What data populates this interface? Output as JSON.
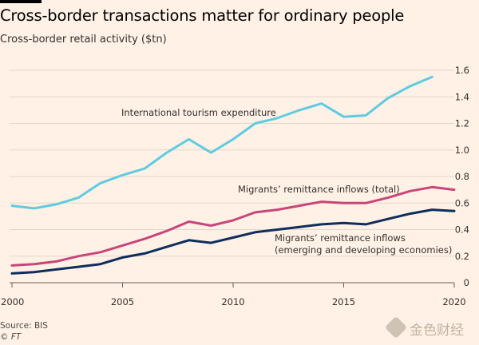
{
  "title": "Cross-border transactions matter for ordinary people",
  "subtitle": "Cross-border retail activity ($tn)",
  "footer": {
    "source": "Source: BIS",
    "credit": "© FT"
  },
  "watermark": {
    "text": "金色财经"
  },
  "colors": {
    "background": "#fff1e5",
    "grid": "#e0d7cc",
    "tourism": "#5fcbe0",
    "remittance_total": "#c8457a",
    "remittance_emerging": "#0f2d5c"
  },
  "chart_data": {
    "type": "line",
    "title": "",
    "xlabel": "",
    "ylabel": "",
    "xlim": [
      2000,
      2020
    ],
    "ylim": [
      0,
      1.6
    ],
    "x_ticks": [
      "2000",
      "2005",
      "2010",
      "2015",
      "2020"
    ],
    "y_ticks": [
      "0",
      "0.2",
      "0.4",
      "0.6",
      "0.8",
      "1.0",
      "1.2",
      "1.4",
      "1.6"
    ],
    "y_axis_position": "right",
    "grid": true,
    "x": [
      2000,
      2001,
      2002,
      2003,
      2004,
      2005,
      2006,
      2007,
      2008,
      2009,
      2010,
      2011,
      2012,
      2013,
      2014,
      2015,
      2016,
      2017,
      2018,
      2019,
      2020
    ],
    "series": [
      {
        "name": "International tourism expenditure",
        "color": "#5fcbe0",
        "values": [
          0.58,
          0.56,
          0.59,
          0.64,
          0.75,
          0.81,
          0.86,
          0.98,
          1.08,
          0.98,
          1.08,
          1.2,
          1.24,
          1.3,
          1.35,
          1.25,
          1.26,
          1.39,
          1.48,
          1.55,
          null
        ]
      },
      {
        "name": "Migrants' remittance inflows (total)",
        "color": "#c8457a",
        "values": [
          0.13,
          0.14,
          0.16,
          0.2,
          0.23,
          0.28,
          0.33,
          0.39,
          0.46,
          0.43,
          0.47,
          0.53,
          0.55,
          0.58,
          0.61,
          0.6,
          0.6,
          0.64,
          0.69,
          0.72,
          0.7
        ]
      },
      {
        "name": "Migrants' remittance inflows (emerging and developing economies)",
        "color": "#0f2d5c",
        "values": [
          0.07,
          0.08,
          0.1,
          0.12,
          0.14,
          0.19,
          0.22,
          0.27,
          0.32,
          0.3,
          0.34,
          0.38,
          0.4,
          0.42,
          0.44,
          0.45,
          0.44,
          0.48,
          0.52,
          0.55,
          0.54
        ]
      }
    ],
    "annotations": [
      {
        "series": 0,
        "lines": [
          "International tourism expenditure"
        ]
      },
      {
        "series": 1,
        "lines": [
          "Migrants’ remittance inflows (total)"
        ]
      },
      {
        "series": 2,
        "lines": [
          "Migrants’ remittance inflows",
          "(emerging and developing economies)"
        ]
      }
    ]
  }
}
